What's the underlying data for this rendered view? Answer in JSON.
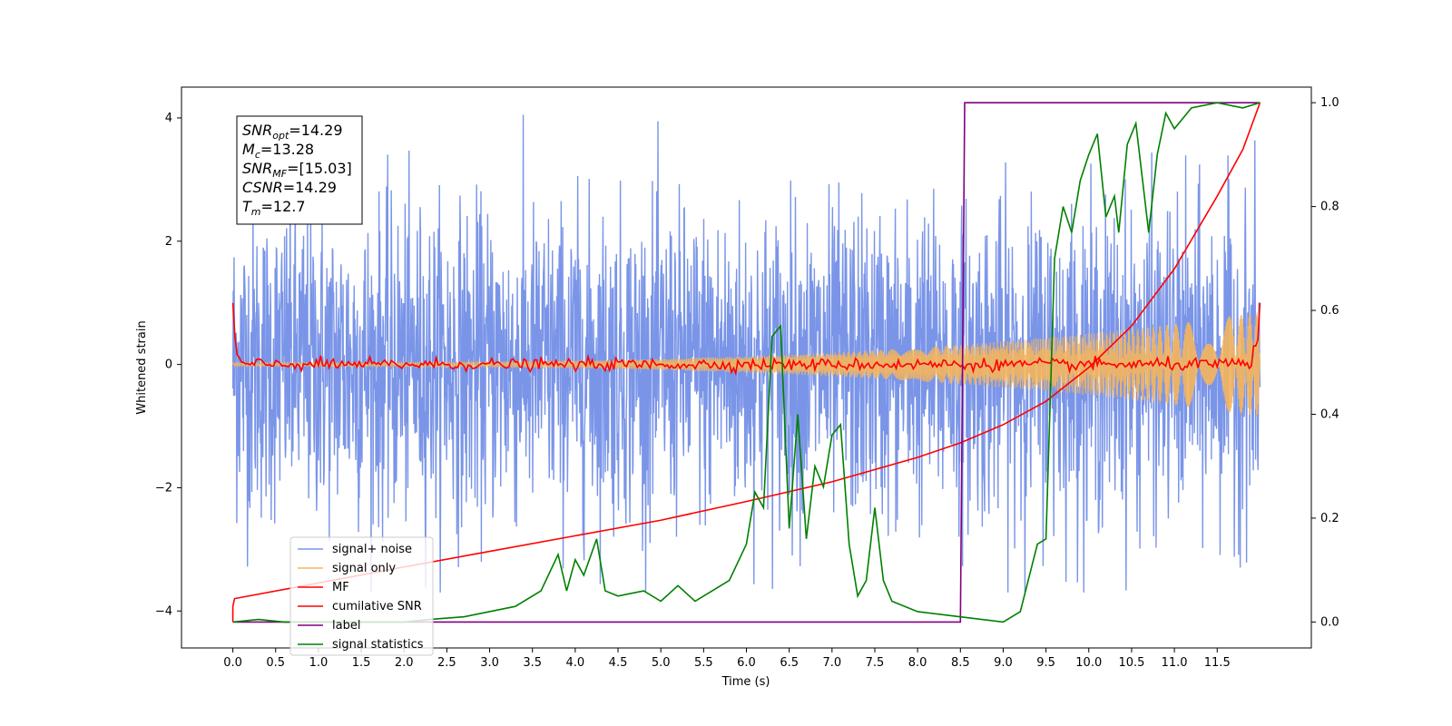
{
  "chart_data": {
    "type": "line",
    "xlabel": "Time (s)",
    "ylabel": "Whitened strain",
    "xlim": [
      -0.6,
      12.6
    ],
    "ylim": [
      -4.6,
      4.5
    ],
    "y2lim": [
      -0.05,
      1.03
    ],
    "x_ticks": [
      0.0,
      0.5,
      1.0,
      1.5,
      2.0,
      2.5,
      3.0,
      3.5,
      4.0,
      4.5,
      5.0,
      5.5,
      6.0,
      6.5,
      7.0,
      7.5,
      8.0,
      8.5,
      9.0,
      9.5,
      10.0,
      10.5,
      11.0,
      11.5
    ],
    "x_tick_labels": [
      "0.0",
      "0.5",
      "1.0",
      "1.5",
      "2.0",
      "2.5",
      "3.0",
      "3.5",
      "4.0",
      "4.5",
      "5.0",
      "5.5",
      "6.0",
      "6.5",
      "7.0",
      "7.5",
      "8.0",
      "8.5",
      "9.0",
      "9.5",
      "10.0",
      "10.5",
      "11.0",
      "11.5"
    ],
    "y_ticks": [
      -4,
      -2,
      0,
      2,
      4
    ],
    "y_tick_labels": [
      "−4",
      "−2",
      "0",
      "2",
      "4"
    ],
    "y2_ticks": [
      0.0,
      0.2,
      0.4,
      0.6,
      0.8,
      1.0
    ],
    "y2_tick_labels": [
      "0.0",
      "0.2",
      "0.4",
      "0.6",
      "0.8",
      "1.0"
    ],
    "grid": false,
    "legend_position": "lower-left",
    "info_box": {
      "lines": [
        {
          "main": "SNR",
          "sub": "opt",
          "value": "=14.29"
        },
        {
          "main": "M",
          "sub": "c",
          "value": "=13.28"
        },
        {
          "main": "SNR",
          "sub": "MF",
          "value": "=[15.03]"
        },
        {
          "main": "CSNR",
          "sub": "",
          "value": "=14.29"
        },
        {
          "main": "T",
          "sub": "m",
          "value": "=12.7"
        }
      ]
    },
    "series": [
      {
        "name": "signal+ noise",
        "color": "#7a95e8",
        "axis": "left",
        "kind": "noise",
        "x_range": [
          0,
          12
        ],
        "amplitude": 1.25,
        "peak_range": [
          -3.7,
          4.05
        ]
      },
      {
        "name": "signal only",
        "color": "#f5b55c",
        "axis": "left",
        "kind": "chirp",
        "x_range": [
          0,
          12
        ],
        "amplitude_start": 0.03,
        "amplitude_end": 0.85
      },
      {
        "name": "MF",
        "color": "#ff0000",
        "axis": "left",
        "kind": "mf",
        "x_range": [
          0,
          12
        ],
        "start_value": 1.0,
        "end_value": 1.0,
        "mid_noise": 0.08
      },
      {
        "name": "cumilative SNR",
        "color": "#ff0000",
        "axis": "right",
        "x": [
          0,
          0.02,
          1,
          2,
          3,
          4,
          5,
          6,
          7,
          8,
          8.5,
          9,
          9.5,
          10,
          10.5,
          11,
          11.5,
          11.8,
          12
        ],
        "values": [
          0.03,
          0.045,
          0.075,
          0.106,
          0.136,
          0.166,
          0.196,
          0.232,
          0.27,
          0.317,
          0.345,
          0.38,
          0.425,
          0.49,
          0.57,
          0.68,
          0.82,
          0.91,
          1.0
        ]
      },
      {
        "name": "label",
        "color": "#800080",
        "axis": "right",
        "x": [
          0,
          8.5,
          8.55,
          12
        ],
        "values": [
          0.0,
          0.0,
          1.0,
          1.0
        ]
      },
      {
        "name": "signal statistics",
        "color": "#008000",
        "axis": "right",
        "x": [
          0,
          0.3,
          0.6,
          1.0,
          1.5,
          2.0,
          2.3,
          2.7,
          3.0,
          3.3,
          3.6,
          3.8,
          3.9,
          4.0,
          4.1,
          4.25,
          4.35,
          4.5,
          4.8,
          5.0,
          5.2,
          5.4,
          5.6,
          5.8,
          6.0,
          6.1,
          6.2,
          6.3,
          6.4,
          6.5,
          6.6,
          6.7,
          6.8,
          6.9,
          7.0,
          7.1,
          7.2,
          7.3,
          7.4,
          7.5,
          7.6,
          7.7,
          8.0,
          8.5,
          9.0,
          9.2,
          9.4,
          9.5,
          9.6,
          9.7,
          9.8,
          9.9,
          10.0,
          10.1,
          10.2,
          10.3,
          10.35,
          10.45,
          10.55,
          10.7,
          10.8,
          10.9,
          11.0,
          11.2,
          11.5,
          11.8,
          12.0
        ],
        "values": [
          0.0,
          0.005,
          0.0,
          0.0,
          0.0,
          0.0,
          0.005,
          0.01,
          0.02,
          0.03,
          0.06,
          0.13,
          0.06,
          0.12,
          0.09,
          0.16,
          0.06,
          0.05,
          0.06,
          0.04,
          0.07,
          0.04,
          0.06,
          0.08,
          0.15,
          0.25,
          0.22,
          0.55,
          0.57,
          0.18,
          0.4,
          0.16,
          0.3,
          0.26,
          0.36,
          0.38,
          0.15,
          0.05,
          0.08,
          0.22,
          0.08,
          0.04,
          0.02,
          0.01,
          0.0,
          0.02,
          0.15,
          0.16,
          0.7,
          0.8,
          0.75,
          0.85,
          0.9,
          0.94,
          0.78,
          0.82,
          0.75,
          0.92,
          0.96,
          0.75,
          0.9,
          0.98,
          0.95,
          0.99,
          1.0,
          0.99,
          1.0
        ]
      }
    ]
  }
}
